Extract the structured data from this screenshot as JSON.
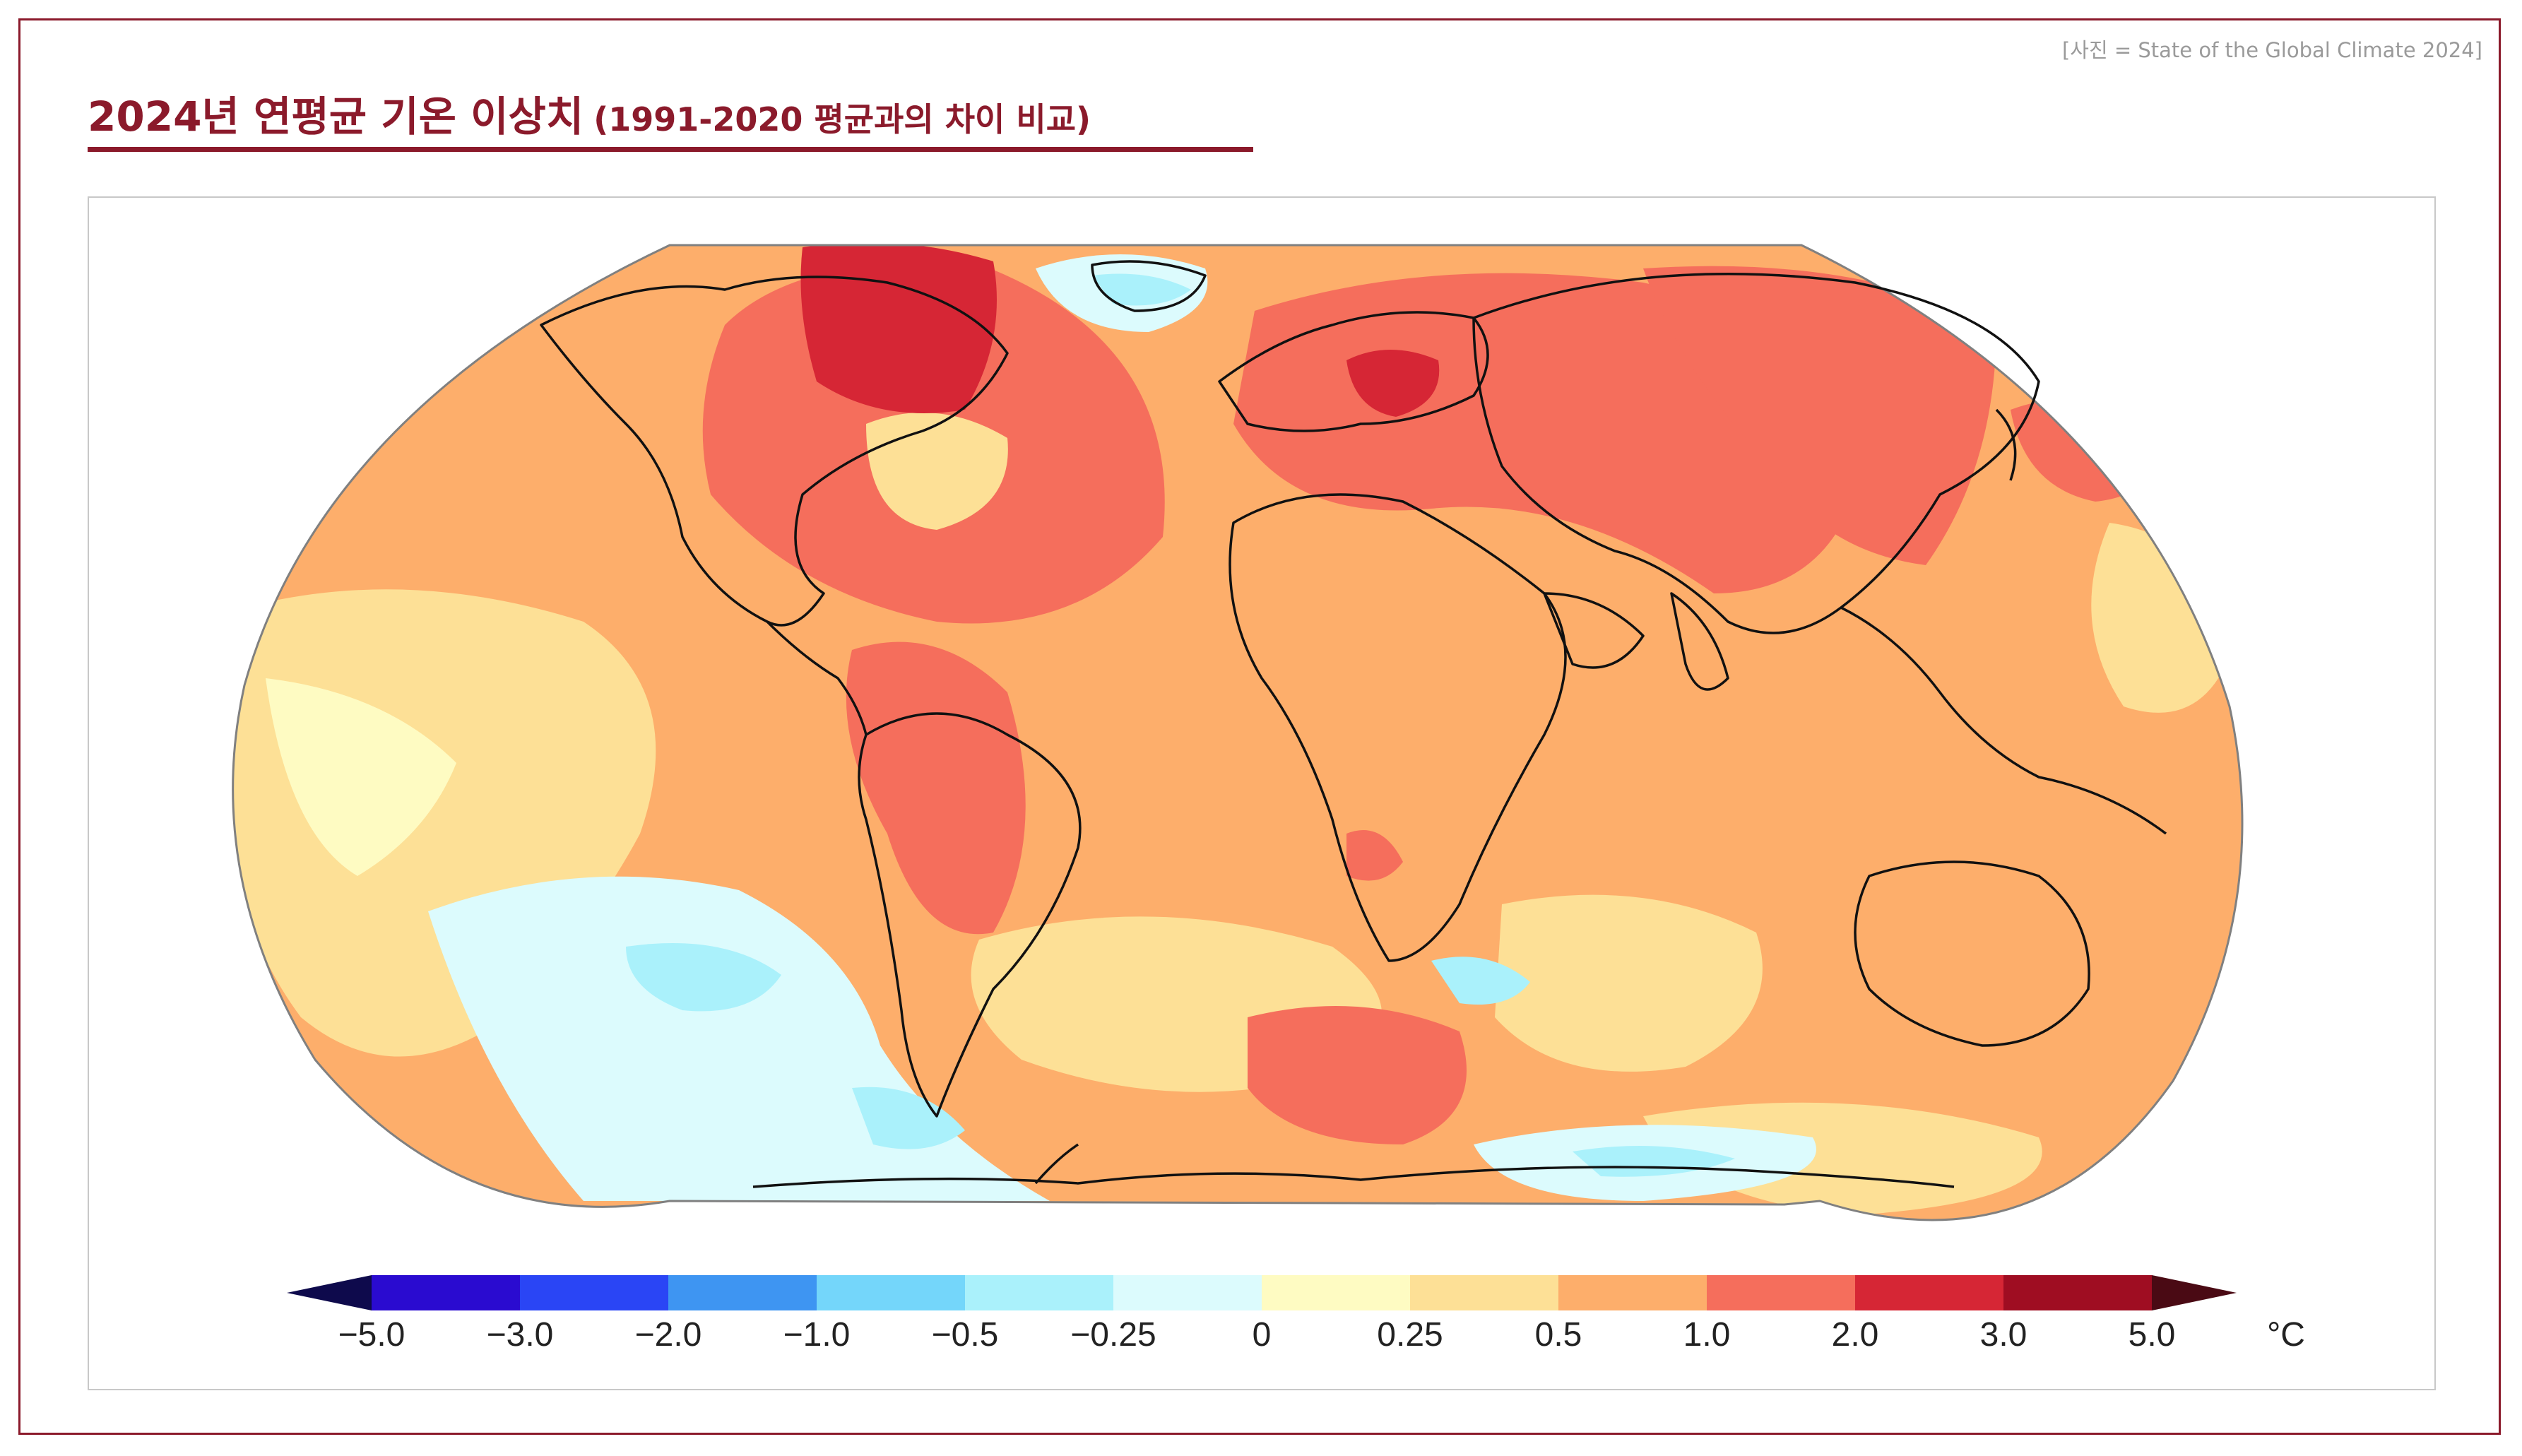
{
  "header": {
    "credit": "[사진 = State of the Global Climate 2024]",
    "title_main": "2024년 연평균 기온 이상치",
    "title_sub": "(1991-2020 평균과의 차이 비교)"
  },
  "colors": {
    "accent": "#8b1a2b",
    "ocean_base": "#fdbf83",
    "land_line": "#111111"
  },
  "map": {
    "projection": "robinson",
    "anomaly_regions": [
      {
        "name": "north-atlantic-warm",
        "bin": "1.0"
      },
      {
        "name": "canada-arctic-hot",
        "bin": "2.0"
      },
      {
        "name": "eastern-europe-hot",
        "bin": "2.0"
      },
      {
        "name": "siberia-warm",
        "bin": "1.0"
      },
      {
        "name": "north-pacific-hot",
        "bin": "2.0"
      },
      {
        "name": "south-america-warm",
        "bin": "1.0"
      },
      {
        "name": "south-pacific-cool",
        "bin": "-0.25"
      },
      {
        "name": "south-pacific-cold",
        "bin": "-0.5"
      },
      {
        "name": "greenland-cool",
        "bin": "-0.5"
      },
      {
        "name": "southern-ocean-warm",
        "bin": "1.0"
      },
      {
        "name": "antarctic-cool",
        "bin": "-0.5"
      }
    ]
  },
  "legend": {
    "unit": "°C",
    "colors": [
      "#2a0bd0",
      "#2a45f5",
      "#3e95f2",
      "#74d6fa",
      "#aaf1fb",
      "#dcfbfd",
      "#fefbc2",
      "#fde096",
      "#fdae6b",
      "#f56e5c",
      "#d62635",
      "#9f0d22"
    ],
    "low_arrow_color": "#0e0a4c",
    "high_arrow_color": "#4a0a14",
    "tick_labels": [
      "−5.0",
      "−3.0",
      "−2.0",
      "−1.0",
      "−0.5",
      "−0.25",
      "0",
      "0.25",
      "0.5",
      "1.0",
      "2.0",
      "3.0",
      "5.0"
    ]
  }
}
